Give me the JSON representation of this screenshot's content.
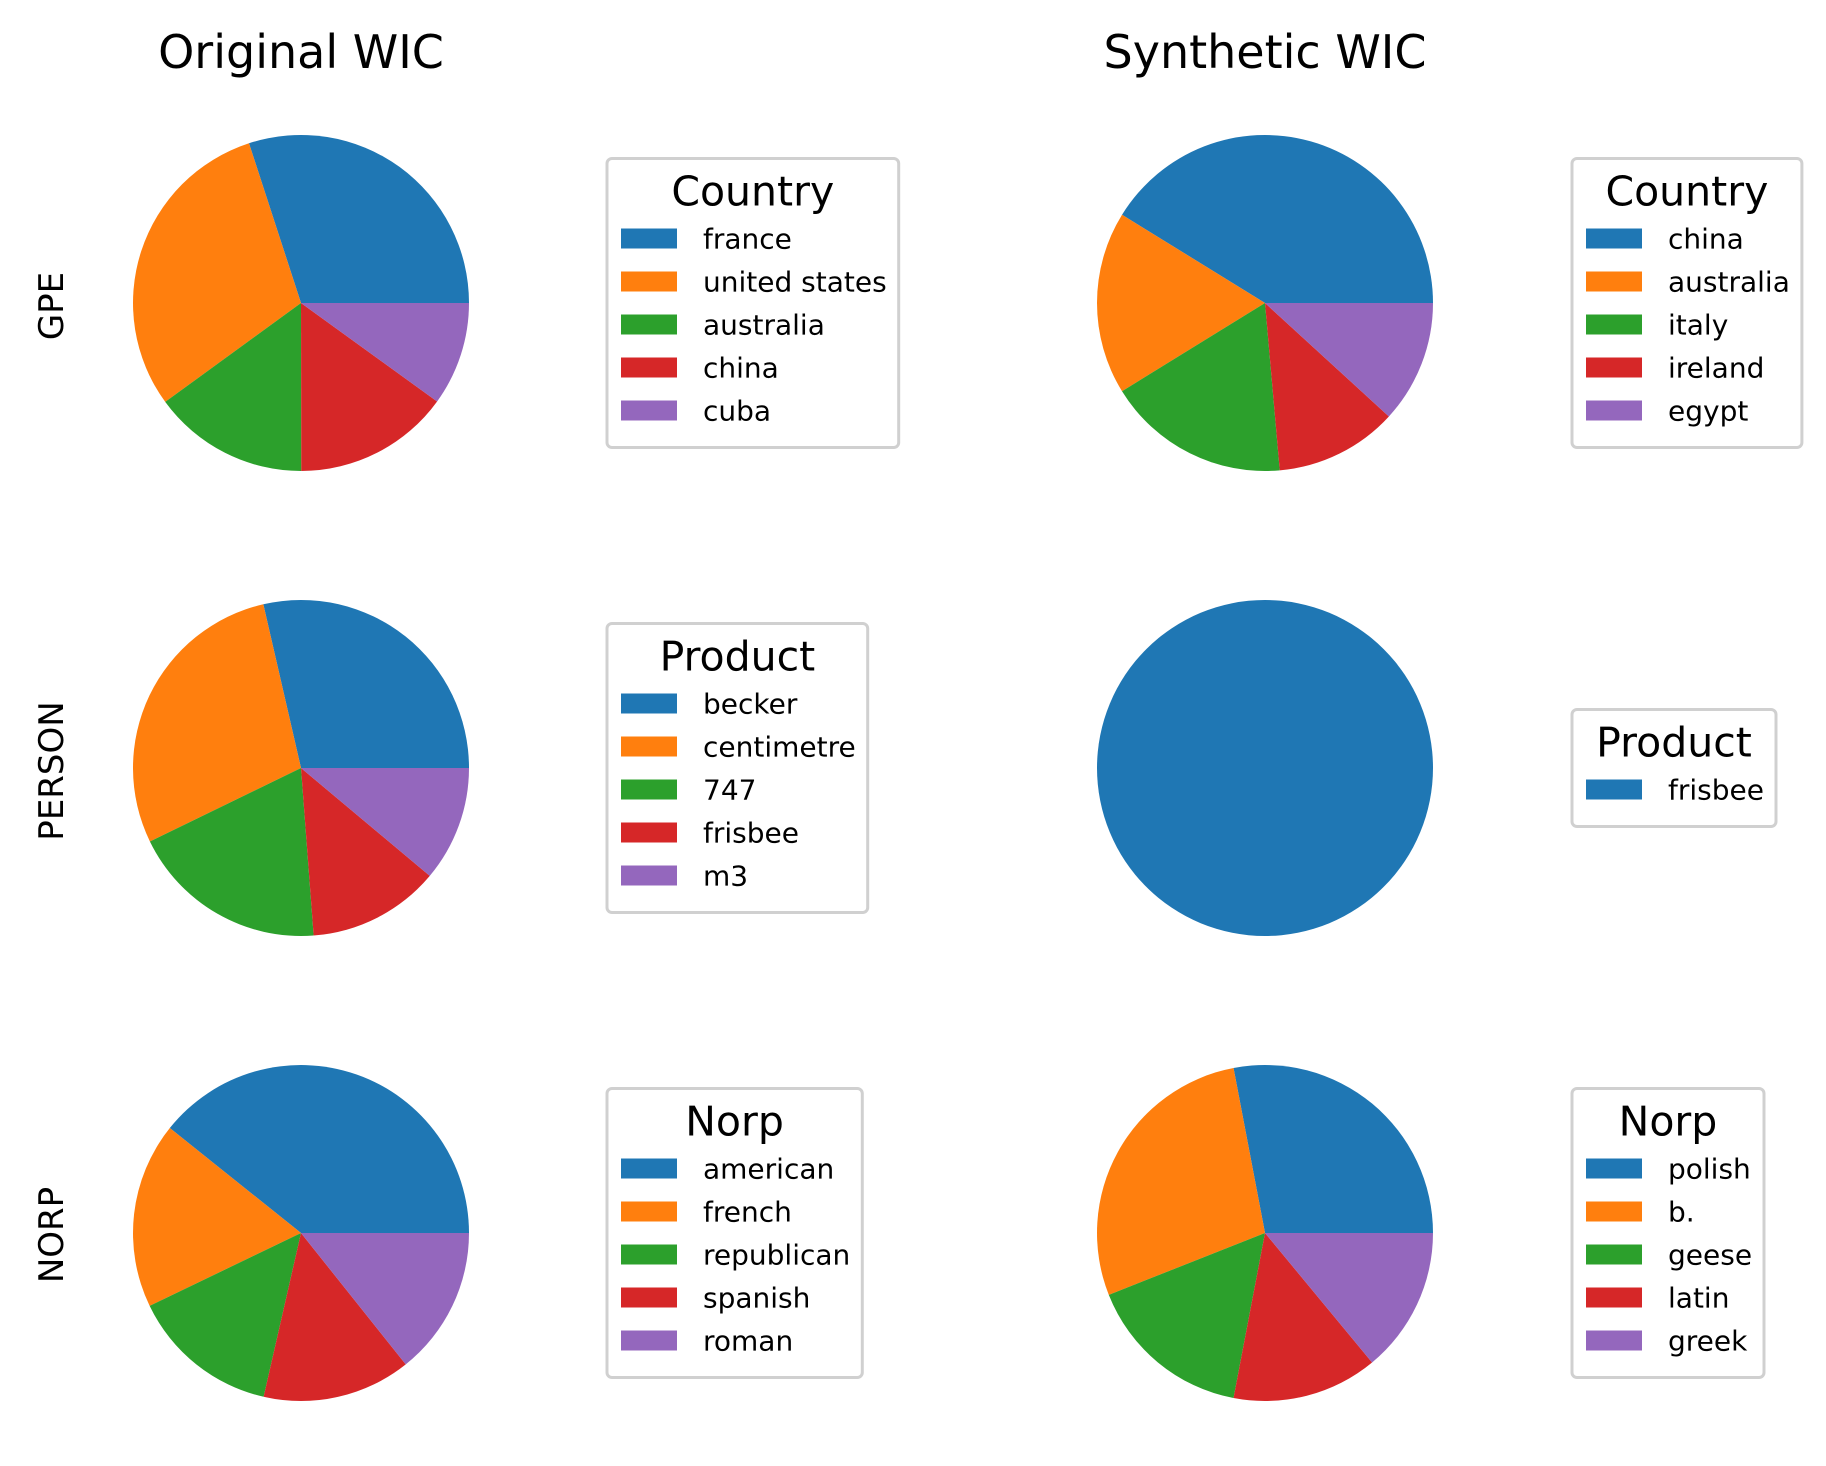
{
  "figure": {
    "column_titles": [
      "Original WIC",
      "Synthetic WIC"
    ],
    "row_labels": [
      "GPE",
      "PERSON",
      "NORP"
    ]
  },
  "palette": {
    "blue": "#1f77b4",
    "orange": "#ff7f0e",
    "green": "#2ca02c",
    "red": "#d62728",
    "purple": "#9467bd"
  },
  "chart_data": [
    {
      "type": "pie",
      "column": "Original WIC",
      "row": "GPE",
      "legend_title": "Country",
      "labels": [
        "france",
        "united states",
        "australia",
        "china",
        "cuba"
      ],
      "values": [
        28.6,
        28.6,
        14.3,
        14.3,
        9.5
      ],
      "colors": [
        "#1f77b4",
        "#ff7f0e",
        "#2ca02c",
        "#d62728",
        "#9467bd"
      ]
    },
    {
      "type": "pie",
      "column": "Synthetic WIC",
      "row": "GPE",
      "legend_title": "Country",
      "labels": [
        "china",
        "australia",
        "italy",
        "ireland",
        "egypt"
      ],
      "values": [
        41.2,
        17.6,
        17.6,
        11.8,
        11.8
      ],
      "colors": [
        "#1f77b4",
        "#ff7f0e",
        "#2ca02c",
        "#d62728",
        "#9467bd"
      ]
    },
    {
      "type": "pie",
      "column": "Original WIC",
      "row": "PERSON",
      "legend_title": "Product",
      "labels": [
        "becker",
        "centimetre",
        "747",
        "frisbee",
        "m3"
      ],
      "values": [
        28.6,
        28.6,
        19.0,
        12.7,
        11.1
      ],
      "colors": [
        "#1f77b4",
        "#ff7f0e",
        "#2ca02c",
        "#d62728",
        "#9467bd"
      ]
    },
    {
      "type": "pie",
      "column": "Synthetic WIC",
      "row": "PERSON",
      "legend_title": "Product",
      "labels": [
        "frisbee"
      ],
      "values": [
        100
      ],
      "colors": [
        "#1f77b4"
      ]
    },
    {
      "type": "pie",
      "column": "Original WIC",
      "row": "NORP",
      "legend_title": "Norp",
      "labels": [
        "american",
        "french",
        "republican",
        "spanish",
        "roman"
      ],
      "values": [
        39.3,
        17.9,
        14.3,
        14.3,
        14.3
      ],
      "colors": [
        "#1f77b4",
        "#ff7f0e",
        "#2ca02c",
        "#d62728",
        "#9467bd"
      ]
    },
    {
      "type": "pie",
      "column": "Synthetic WIC",
      "row": "NORP",
      "legend_title": "Norp",
      "labels": [
        "polish",
        "b.",
        "geese",
        "latin",
        "greek"
      ],
      "values": [
        28.0,
        28.0,
        16.0,
        14.0,
        14.0
      ],
      "colors": [
        "#1f77b4",
        "#ff7f0e",
        "#2ca02c",
        "#d62728",
        "#9467bd"
      ]
    }
  ]
}
